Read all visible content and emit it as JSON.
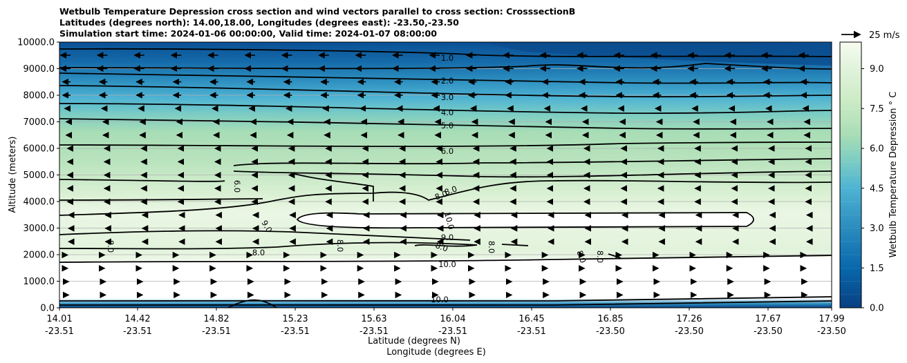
{
  "chart_data": {
    "type": "heatmap",
    "title": [
      "Wetbulb Temperature Depression cross section and wind vectors parallel to cross section: CrosssectionB",
      "Latitudes (degrees north): 14.00,18.00, Longitudes (degrees east): -23.50,-23.50",
      "Simulation start time: 2024-01-06 00:00:00, Valid time: 2024-01-07 08:00:00"
    ],
    "ylabel": "Altitude (meters)",
    "xlabel": [
      "Latitude (degrees N)",
      "Longitude (degrees E)"
    ],
    "ylim": [
      0,
      10000
    ],
    "yticks": [
      "0.0",
      "1000.0",
      "2000.0",
      "3000.0",
      "4000.0",
      "5000.0",
      "6000.0",
      "7000.0",
      "8000.0",
      "9000.0",
      "10000.0"
    ],
    "xticks": [
      {
        "lat": "14.01",
        "lon": "-23.51"
      },
      {
        "lat": "14.42",
        "lon": "-23.51"
      },
      {
        "lat": "14.82",
        "lon": "-23.51"
      },
      {
        "lat": "15.23",
        "lon": "-23.51"
      },
      {
        "lat": "15.63",
        "lon": "-23.51"
      },
      {
        "lat": "16.04",
        "lon": "-23.51"
      },
      {
        "lat": "16.45",
        "lon": "-23.51"
      },
      {
        "lat": "16.85",
        "lon": "-23.50"
      },
      {
        "lat": "17.26",
        "lon": "-23.50"
      },
      {
        "lat": "17.67",
        "lon": "-23.50"
      },
      {
        "lat": "17.99",
        "lon": "-23.50"
      }
    ],
    "grid": true,
    "colorbar": {
      "label": "Wetbulb Temperature Depression ° C",
      "ticks": [
        "0.0",
        "1.5",
        "3.0",
        "4.5",
        "6.0",
        "7.5",
        "9.0"
      ],
      "range": [
        0,
        10
      ],
      "colormap": "GnBu_r"
    },
    "wind_key": "25 m/s",
    "contour_labels": [
      "1.0",
      "2.0",
      "3.0",
      "4.0",
      "5.0",
      "6.0",
      "8.0",
      "8.0",
      "10.0",
      "9.0",
      "8.0",
      "10.0",
      "6.0",
      "9.0",
      "8.0",
      "8.0",
      "8.0",
      "8.0",
      "8.0",
      "8.0",
      "10.0"
    ]
  }
}
